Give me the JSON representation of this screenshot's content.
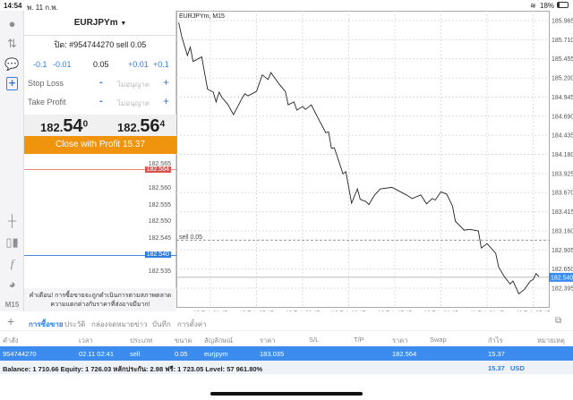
{
  "status_bar": {
    "time": "14:54",
    "date": "พ. 11 ก.พ.",
    "battery": "18%"
  },
  "sidebar": {
    "icons": [
      "account-icon",
      "trade-icon",
      "chat-icon",
      "new-order-icon",
      "crosshair-icon",
      "chart-type-icon",
      "indicator-icon",
      "objects-icon"
    ],
    "timeframe": "M15"
  },
  "order_panel": {
    "symbol": "EURJPYm",
    "order_line": "ปิด: #954744270 sell 0.05",
    "steps": [
      "-0.1",
      "-0.01",
      "0.05",
      "+0.01",
      "+0.1"
    ],
    "stop_loss": {
      "label": "Stop Loss",
      "value_placeholder": "ไม่อนุญาต",
      "minus": "-",
      "plus": "+"
    },
    "take_profit": {
      "label": "Take Profit",
      "value_placeholder": "ไม่อนุญาต",
      "minus": "-",
      "plus": "+"
    },
    "bid": {
      "main": "182.",
      "big": "54",
      "small": "0"
    },
    "ask": {
      "main": "182.",
      "big": "56",
      "small": "4"
    },
    "close_button": "Close with Profit 15.37",
    "mini_chart": {
      "labels": [
        "182.565",
        "182.560",
        "182.555",
        "182.550",
        "182.545",
        "182.540",
        "182.535"
      ],
      "ask_tag": "182.564",
      "bid_tag": "182.540"
    },
    "warning": "คำเตือน! การซื้อขายจะถูกดำเนินการตามสภาพตลาด ความแตกต่างกับราคาที่ส่งอาจมีมาก!"
  },
  "chart_data": {
    "type": "line",
    "title": "EURJPYm, M15",
    "ylim": [
      182.27,
      186.05
    ],
    "y_ticks": [
      "185.965",
      "185.710",
      "185.455",
      "185.200",
      "184.945",
      "184.690",
      "184.435",
      "184.180",
      "183.925",
      "183.670",
      "183.415",
      "183.160",
      "182.905",
      "182.650",
      "182.395"
    ],
    "x_ticks": [
      "10 Feb 01:45",
      "10 Feb 05:45",
      "10 Feb 09:45",
      "10 Feb 13:45",
      "10 Feb 17:45",
      "10 Feb 21:45",
      "11 Feb 01:45",
      "11 Feb 05:45"
    ],
    "grid": true,
    "order_line": {
      "label": "sell 0.05",
      "price": 183.035
    },
    "bid_line": {
      "price": 182.54,
      "label": "182.540"
    },
    "colors": {
      "line": "#222222",
      "bid": "#3c8cf0"
    },
    "points": [
      [
        "9 Feb 23:00",
        185.94
      ],
      [
        "9 Feb 23:15",
        185.76
      ],
      [
        "9 Feb 23:45",
        185.5
      ],
      [
        "10 Feb 00:00",
        185.61
      ],
      [
        "10 Feb 00:15",
        185.42
      ],
      [
        "10 Feb 01:00",
        185.48
      ],
      [
        "10 Feb 01:30",
        185.05
      ],
      [
        "10 Feb 02:00",
        185.01
      ],
      [
        "10 Feb 02:15",
        184.88
      ],
      [
        "10 Feb 02:30",
        185.01
      ],
      [
        "10 Feb 02:45",
        184.94
      ],
      [
        "10 Feb 03:15",
        184.85
      ],
      [
        "10 Feb 03:45",
        184.71
      ],
      [
        "10 Feb 04:30",
        184.93
      ],
      [
        "10 Feb 04:45",
        184.99
      ],
      [
        "10 Feb 05:00",
        184.96
      ],
      [
        "10 Feb 05:45",
        185.02
      ],
      [
        "10 Feb 06:15",
        185.24
      ],
      [
        "10 Feb 06:45",
        185.18
      ],
      [
        "10 Feb 07:00",
        185.27
      ],
      [
        "10 Feb 07:45",
        185.11
      ],
      [
        "10 Feb 08:15",
        185.02
      ],
      [
        "10 Feb 08:30",
        184.84
      ],
      [
        "10 Feb 09:00",
        184.88
      ],
      [
        "10 Feb 09:15",
        184.77
      ],
      [
        "10 Feb 09:45",
        184.82
      ],
      [
        "10 Feb 10:00",
        184.78
      ],
      [
        "10 Feb 10:30",
        184.84
      ],
      [
        "10 Feb 11:00",
        184.69
      ],
      [
        "10 Feb 11:45",
        184.47
      ],
      [
        "10 Feb 12:00",
        184.48
      ],
      [
        "10 Feb 12:15",
        184.26
      ],
      [
        "10 Feb 12:30",
        184.27
      ],
      [
        "10 Feb 13:15",
        183.92
      ],
      [
        "10 Feb 13:30",
        183.95
      ],
      [
        "10 Feb 14:00",
        183.53
      ],
      [
        "10 Feb 14:30",
        183.72
      ],
      [
        "10 Feb 14:45",
        183.58
      ],
      [
        "10 Feb 15:15",
        183.55
      ],
      [
        "10 Feb 15:30",
        183.51
      ],
      [
        "10 Feb 16:00",
        183.64
      ],
      [
        "10 Feb 16:30",
        183.72
      ],
      [
        "10 Feb 17:30",
        183.74
      ],
      [
        "10 Feb 18:00",
        183.7
      ],
      [
        "10 Feb 18:45",
        183.64
      ],
      [
        "10 Feb 19:15",
        183.59
      ],
      [
        "10 Feb 20:00",
        183.64
      ],
      [
        "10 Feb 20:30",
        183.52
      ],
      [
        "10 Feb 21:00",
        183.59
      ],
      [
        "10 Feb 21:15",
        183.57
      ],
      [
        "10 Feb 21:45",
        183.68
      ],
      [
        "10 Feb 22:15",
        183.65
      ],
      [
        "10 Feb 22:45",
        183.49
      ],
      [
        "10 Feb 23:00",
        183.29
      ],
      [
        "10 Feb 23:45",
        183.17
      ],
      [
        "11 Feb 00:15",
        183.18
      ],
      [
        "11 Feb 01:00",
        183.16
      ],
      [
        "11 Feb 01:15",
        182.93
      ],
      [
        "11 Feb 01:45",
        182.99
      ],
      [
        "11 Feb 02:30",
        182.86
      ],
      [
        "11 Feb 02:45",
        182.68
      ],
      [
        "11 Feb 03:15",
        182.55
      ],
      [
        "11 Feb 03:45",
        182.45
      ],
      [
        "11 Feb 04:00",
        182.49
      ],
      [
        "11 Feb 04:30",
        182.32
      ],
      [
        "11 Feb 05:00",
        182.38
      ],
      [
        "11 Feb 05:30",
        182.49
      ],
      [
        "11 Feb 05:45",
        182.51
      ],
      [
        "11 Feb 06:00",
        182.59
      ],
      [
        "11 Feb 06:15",
        182.55
      ]
    ]
  },
  "bottom": {
    "tabs": [
      "การซื้อขาย",
      "ประวัติ",
      "กล่องจดหมาย",
      "ข่าว",
      "บันทึก",
      "การตั้งค่า"
    ],
    "active_tab": 0,
    "headers": [
      "คำสั่ง",
      "เวลา",
      "ประเภท",
      "ขนาด",
      "สัญลักษณ์",
      "ราคา",
      "S/L",
      "T/P",
      "ราคา",
      "Swap",
      "กำไร",
      "หมายเหตุ"
    ],
    "row": [
      "954744270",
      "02.11 02:41",
      "sell",
      "0.05",
      "eurjpym",
      "183.035",
      "",
      "",
      "182.564",
      "",
      "15.37",
      ""
    ],
    "balance_line": "Balance: 1 710.66 Equity: 1 726.03 หลักประกัน: 2.98 ฟรี: 1 723.05 Level: 57 961.80%",
    "total_profit": "15.37",
    "currency": "USD"
  }
}
